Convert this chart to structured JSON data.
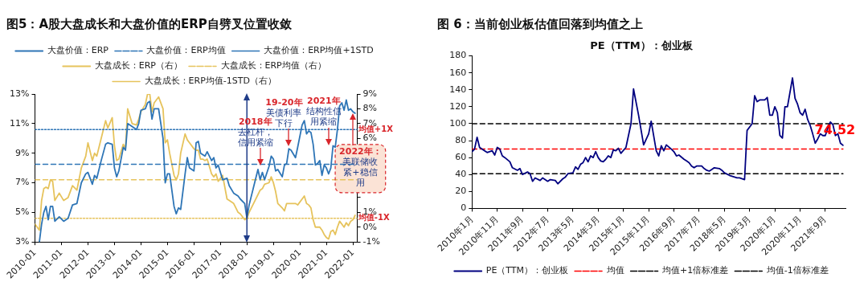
{
  "chart_data": [
    {
      "type": "line",
      "title": "图5：A股大盘成长和大盘价值的ERP自劈叉位置收敛",
      "legend": "top",
      "x": [
        "2010-01",
        "2010-03",
        "2010-04",
        "2010-05",
        "2010-06",
        "2010-07",
        "2010-08",
        "2010-09",
        "2010-10",
        "2010-12",
        "2011-02",
        "2011-04",
        "2011-06",
        "2011-08",
        "2011-10",
        "2011-12",
        "2012-01",
        "2012-03",
        "2012-04",
        "2012-05",
        "2012-07",
        "2012-09",
        "2012-10",
        "2012-12",
        "2013-01",
        "2013-02",
        "2013-03",
        "2013-05",
        "2013-06",
        "2013-07",
        "2013-09",
        "2013-11",
        "2013-12",
        "2014-01",
        "2014-03",
        "2014-04",
        "2014-05",
        "2014-06",
        "2014-07",
        "2014-09",
        "2014-11",
        "2014-12",
        "2015-01",
        "2015-02",
        "2015-04",
        "2015-05",
        "2015-06",
        "2015-07",
        "2015-09",
        "2015-10",
        "2015-11",
        "2016-01",
        "2016-02",
        "2016-03",
        "2016-04",
        "2016-05",
        "2016-06",
        "2016-07",
        "2016-09",
        "2016-10",
        "2016-11",
        "2016-12",
        "2017-02",
        "2017-04",
        "2017-05",
        "2017-07",
        "2017-09",
        "2017-10",
        "2017-12",
        "2018-01",
        "2018-02",
        "2018-04",
        "2018-06",
        "2018-07",
        "2018-08",
        "2018-09",
        "2018-11",
        "2018-12",
        "2019-01",
        "2019-02",
        "2019-03",
        "2019-05",
        "2019-06",
        "2019-07",
        "2019-08",
        "2019-09",
        "2019-11",
        "2019-12",
        "2020-02",
        "2020-03",
        "2020-04",
        "2020-05",
        "2020-06",
        "2020-07",
        "2020-08",
        "2020-09",
        "2020-10",
        "2020-11",
        "2020-12",
        "2021-01",
        "2021-02",
        "2021-03",
        "2021-04",
        "2021-05",
        "2021-06",
        "2021-07",
        "2021-08",
        "2021-09",
        "2021-10",
        "2021-11",
        "2021-12",
        "2022-01",
        "2022-02"
      ],
      "series": [
        {
          "name": "大盘价值：ERP",
          "color": "#2e75b6",
          "values": [
            null,
            3.0,
            4.2,
            5.0,
            5.4,
            4.5,
            5.4,
            5.4,
            4.4,
            4.7,
            4.4,
            4.6,
            5.5,
            5.6,
            7.0,
            7.6,
            7.7,
            6.9,
            7.5,
            7.3,
            8.5,
            9.6,
            9.7,
            9.6,
            8.0,
            7.4,
            7.8,
            9.4,
            9.2,
            11.0,
            10.8,
            10.6,
            11.0,
            11.9,
            12.0,
            12.4,
            12.5,
            11.3,
            12.0,
            12.0,
            10.0,
            7.0,
            7.6,
            7.6,
            5.4,
            4.9,
            5.3,
            5.2,
            7.6,
            8.7,
            8.0,
            7.8,
            9.7,
            9.8,
            9.0,
            8.9,
            8.8,
            9.1,
            8.5,
            8.7,
            8.0,
            8.2,
            7.2,
            7.3,
            6.8,
            6.3,
            6.1,
            5.9,
            5.6,
            4.6,
            5.5,
            6.7,
            7.9,
            7.2,
            7.7,
            7.2,
            8.1,
            8.8,
            8.6,
            7.8,
            7.9,
            7.4,
            8.2,
            8.3,
            9.3,
            9.2,
            8.7,
            9.4,
            10.9,
            11.2,
            10.3,
            10.5,
            10.4,
            9.6,
            8.2,
            8.3,
            8.5,
            7.5,
            8.2,
            8.0,
            7.6,
            8.0,
            9.5,
            9.4,
            10.6,
            12.2,
            12.4,
            11.9,
            12.6,
            11.9,
            12.0,
            11.8,
            11.7
          ]
        },
        {
          "name": "大盘价值：ERP均值",
          "color": "#2e75b6",
          "line_style": "dashed",
          "x": [
            "2010-01",
            "2022-03"
          ],
          "values": [
            8.25,
            8.25
          ]
        },
        {
          "name": "大盘价值：ERP均值+1STD",
          "color": "#2e75b6",
          "line_style": "dotted",
          "x": [
            "2010-01",
            "2022-03"
          ],
          "values": [
            10.6,
            10.6
          ]
        },
        {
          "name": "大盘成长：ERP（右）",
          "color": "#e6c35c",
          "axis": "y2",
          "values": [
            0.2,
            -0.2,
            1.8,
            2.6,
            2.7,
            2.6,
            3.2,
            3.1,
            1.8,
            2.3,
            1.8,
            2.0,
            2.8,
            2.5,
            4.0,
            4.8,
            5.7,
            4.5,
            5.0,
            4.8,
            6.0,
            7.2,
            6.7,
            7.4,
            5.5,
            4.5,
            4.6,
            5.6,
            5.3,
            8.0,
            7.0,
            6.9,
            7.3,
            7.8,
            8.3,
            9.0,
            9.0,
            7.8,
            8.4,
            8.8,
            8.0,
            5.7,
            5.9,
            5.0,
            3.5,
            3.2,
            3.6,
            5.0,
            6.3,
            5.9,
            5.7,
            5.3,
            5.2,
            5.2,
            4.6,
            4.6,
            4.5,
            4.6,
            3.6,
            3.4,
            3.6,
            3.1,
            3.5,
            1.9,
            1.8,
            1.6,
            1.0,
            0.9,
            0.5,
            0.6,
            1.0,
            1.6,
            2.2,
            2.5,
            2.6,
            2.9,
            3.0,
            3.4,
            3.0,
            2.4,
            1.6,
            1.3,
            1.1,
            1.6,
            1.6,
            1.6,
            1.6,
            1.5,
            1.9,
            2.1,
            1.6,
            1.5,
            1.3,
            0.5,
            0.0,
            0.0,
            0.0,
            -0.2,
            -0.5,
            -0.7,
            -0.8,
            -0.3,
            -0.2,
            -0.5,
            0.0,
            0.4,
            0.2,
            0.0,
            0.3,
            0.1,
            0.4,
            0.5,
            0.8
          ]
        },
        {
          "name": "大盘成长：ERP均值（右）",
          "color": "#e6c35c",
          "axis": "y2",
          "line_style": "dashed",
          "x": [
            "2010-01",
            "2022-03"
          ],
          "values": [
            3.2,
            3.2
          ]
        },
        {
          "name": "大盘成长：ERP均值-1STD（右）",
          "color": "#e6c35c",
          "axis": "y2",
          "line_style": "dotted",
          "x": [
            "2010-01",
            "2022-03"
          ],
          "values": [
            0.6,
            0.6
          ]
        }
      ],
      "xlim": [
        "2010-01",
        "2022-03"
      ],
      "xticks": [
        "2010-01",
        "2011-01",
        "2012-01",
        "2013-01",
        "2014-01",
        "2015-01",
        "2016-01",
        "2017-01",
        "2018-01",
        "2019-01",
        "2020-01",
        "2021-01",
        "2022-01"
      ],
      "ylim": [
        3,
        13
      ],
      "yticks": [
        {
          "value": 3,
          "label": "3%"
        },
        {
          "value": 5,
          "label": "5%"
        },
        {
          "value": 7,
          "label": "7%"
        },
        {
          "value": 9,
          "label": "9%"
        },
        {
          "value": 11,
          "label": "11%"
        },
        {
          "value": 13,
          "label": "13%"
        }
      ],
      "y2lim": [
        -1,
        9
      ],
      "y2ticks": [
        {
          "value": -1,
          "label": "-1%"
        },
        {
          "value": 0,
          "label": "0%"
        },
        {
          "value": 1,
          "label": "1%"
        },
        {
          "value": 2,
          "label": null
        },
        {
          "value": 3,
          "label": null
        },
        {
          "value": 4,
          "label": null
        },
        {
          "value": 5,
          "label": null
        },
        {
          "value": 6,
          "label": "6%"
        },
        {
          "value": 7,
          "label": "7%"
        },
        {
          "value": 8,
          "label": "8%"
        },
        {
          "value": 9,
          "label": "9%"
        }
      ],
      "ref_lines": [
        {
          "axis": "x",
          "value": "2018-01",
          "color": "#1f3c88"
        }
      ],
      "annotations": [
        "2018年",
        {
          "text": "去杠杆，信用紧缩",
          "x": "2018-07",
          "y": 8.2
        },
        "19-20年",
        {
          "text": "美债利率下行",
          "x": "2019-08",
          "y": 9.5
        },
        "2021年",
        {
          "text": "结构性信用紧缩",
          "x": "2021-02",
          "y": 9.6
        },
        {
          "text": "均值+1X",
          "x": "2022-02",
          "y": 10.6
        },
        {
          "text": "均值-1X",
          "x": "2022-02",
          "y": 4.6
        },
        {
          "text": "2022年：",
          "x": "2022-01",
          "y": 11.65
        },
        "美联储收紧+稳信用"
      ]
    },
    {
      "type": "line",
      "title": "图 6：当前创业板估值回落到均值之上",
      "subtitle": "PE（TTM）：创业板",
      "legend": "bottom",
      "series": [
        {
          "name": "PE（TTM）：创业板",
          "color": "#000080",
          "x": [
            "2010-01",
            "2010-02",
            "2010-03",
            "2010-04",
            "2010-06",
            "2010-07",
            "2010-09",
            "2010-10",
            "2010-11",
            "2010-12",
            "2011-01",
            "2011-02",
            "2011-04",
            "2011-05",
            "2011-07",
            "2011-08",
            "2011-09",
            "2011-11",
            "2011-12",
            "2012-01",
            "2012-02",
            "2012-04",
            "2012-05",
            "2012-07",
            "2012-08",
            "2012-10",
            "2012-11",
            "2013-01",
            "2013-02",
            "2013-03",
            "2013-05",
            "2013-06",
            "2013-07",
            "2013-08",
            "2013-09",
            "2013-10",
            "2013-11",
            "2013-12",
            "2014-01",
            "2014-02",
            "2014-03",
            "2014-04",
            "2014-05",
            "2014-06",
            "2014-07",
            "2014-08",
            "2014-09",
            "2014-10",
            "2014-11",
            "2014-12",
            "2015-02",
            "2015-04",
            "2015-05",
            "2015-07",
            "2015-09",
            "2015-11",
            "2015-12",
            "2016-02",
            "2016-03",
            "2016-04",
            "2016-05",
            "2016-06",
            "2016-08",
            "2016-09",
            "2016-10",
            "2016-11",
            "2017-01",
            "2017-02",
            "2017-03",
            "2017-04",
            "2017-05",
            "2017-06",
            "2017-08",
            "2017-09",
            "2017-10",
            "2017-11",
            "2017-12",
            "2018-01",
            "2018-03",
            "2018-04",
            "2018-05",
            "2018-07",
            "2018-09",
            "2018-10",
            "2018-11",
            "2019-01",
            "2019-02",
            "2019-04",
            "2019-05",
            "2019-06",
            "2019-07",
            "2019-09",
            "2019-10",
            "2019-11",
            "2019-12",
            "2020-01",
            "2020-02",
            "2020-03",
            "2020-04",
            "2020-05",
            "2020-06",
            "2020-08",
            "2020-09",
            "2020-10",
            "2020-11",
            "2020-12",
            "2021-01",
            "2021-02",
            "2021-03",
            "2021-04",
            "2021-05",
            "2021-06",
            "2021-07",
            "2021-08",
            "2021-09",
            "2021-10",
            "2021-11",
            "2021-12",
            "2022-01",
            "2022-02",
            "2022-03",
            "2022-04"
          ],
          "values": [
            67,
            70,
            84,
            72,
            68,
            66,
            68,
            63,
            72,
            70,
            62,
            60,
            55,
            48,
            45,
            47,
            40,
            43,
            41,
            32,
            36,
            33,
            36,
            32,
            34,
            33,
            29,
            35,
            37,
            41,
            42,
            49,
            46,
            52,
            54,
            60,
            55,
            62,
            60,
            67,
            60,
            56,
            55,
            58,
            62,
            60,
            69,
            68,
            71,
            65,
            72,
            100,
            141,
            110,
            75,
            88,
            103,
            68,
            62,
            74,
            68,
            75,
            70,
            67,
            62,
            63,
            58,
            56,
            54,
            50,
            48,
            50,
            50,
            47,
            45,
            44,
            46,
            48,
            47,
            45,
            42,
            39,
            37,
            36,
            36,
            34,
            92,
            100,
            133,
            126,
            128,
            128,
            131,
            110,
            110,
            120,
            113,
            86,
            83,
            120,
            120,
            154,
            130,
            123,
            113,
            110,
            117,
            105,
            98,
            88,
            77,
            82,
            88,
            86,
            86,
            95,
            102,
            99,
            86,
            88,
            77,
            74.52
          ],
          "value_labels": [
            null,
            null,
            null,
            null,
            null,
            null,
            null,
            null,
            null,
            null,
            null,
            null,
            null,
            null,
            null,
            null,
            null,
            null,
            null,
            null,
            null,
            null,
            null,
            null,
            null,
            null,
            null,
            null,
            null,
            null,
            null,
            null,
            null,
            null,
            null,
            null,
            null,
            null,
            null,
            null,
            null,
            null,
            null,
            null,
            null,
            null,
            null,
            null,
            null,
            null,
            null,
            null,
            null,
            null,
            null,
            null,
            null,
            null,
            null,
            null,
            null,
            null,
            null,
            null,
            null,
            null,
            null,
            null,
            null,
            null,
            null,
            null,
            null,
            null,
            null,
            null,
            null,
            null,
            null,
            null,
            null,
            null,
            null,
            null,
            null,
            null,
            null,
            null,
            null,
            null,
            null,
            null,
            null,
            null,
            null,
            null,
            null,
            null,
            null,
            null,
            null,
            null,
            null,
            null,
            null,
            null,
            null,
            null,
            null,
            null,
            null,
            null,
            null,
            null,
            null,
            null,
            null,
            null,
            null,
            null,
            null,
            "74.52"
          ]
        },
        {
          "name": "均值",
          "color": "#ff0000",
          "line_style": "dashed",
          "x": [
            "2010-01",
            "2022-04"
          ],
          "values": [
            70,
            70
          ]
        },
        {
          "name": "均值+1倍标准差",
          "color": "#000000",
          "line_style": "dashed",
          "x": [
            "2010-01",
            "2022-04"
          ],
          "values": [
            100,
            100
          ]
        },
        {
          "name": "均值-1倍标准差",
          "color": "#000000",
          "line_style": "dashed",
          "x": [
            "2010-01",
            "2022-04"
          ],
          "values": [
            41,
            41
          ]
        }
      ],
      "xlim": [
        "2010-01",
        "2022-05"
      ],
      "xticks": [
        {
          "value": "2010-01",
          "label": "2010年1月"
        },
        {
          "value": "2010-11",
          "label": "2010年11月"
        },
        {
          "value": "2011-09",
          "label": "2011年9月"
        },
        {
          "value": "2012-07",
          "label": "2012年7月"
        },
        {
          "value": "2013-05",
          "label": "2013年5月"
        },
        {
          "value": "2014-03",
          "label": "2014年3月"
        },
        {
          "value": "2015-01",
          "label": "2015年1月"
        },
        {
          "value": "2015-11",
          "label": "2015年11月"
        },
        {
          "value": "2016-09",
          "label": "2016年9月"
        },
        {
          "value": "2017-07",
          "label": "2017年7月"
        },
        {
          "value": "2018-05",
          "label": "2018年5月"
        },
        {
          "value": "2019-03",
          "label": "2019年3月"
        },
        {
          "value": "2020-01",
          "label": "2020年1月"
        },
        {
          "value": "2020-11",
          "label": "2020年11月"
        },
        {
          "value": "2021-09",
          "label": "2021年9月"
        }
      ],
      "ylim": [
        0,
        180
      ],
      "yticks": [
        0,
        20,
        40,
        60,
        80,
        100,
        120,
        140,
        160,
        180
      ]
    }
  ]
}
